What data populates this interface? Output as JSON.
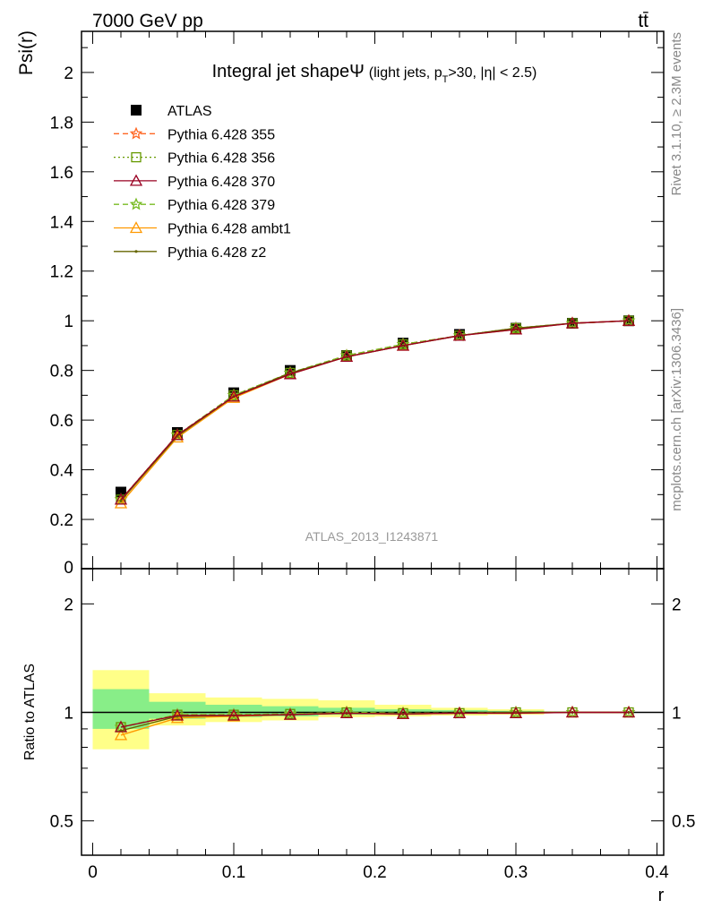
{
  "header": {
    "energy_label": "7000 GeV pp",
    "process_label": "tt̄"
  },
  "side_labels": {
    "rivet": "Rivet 3.1.10, ≥ 2.3M events",
    "mcplots": "mcplots.cern.ch [arXiv:1306.3436]"
  },
  "watermark": "ATLAS_2013_I1243871",
  "colors": {
    "atlas": "#000000",
    "p355": "#ff6622",
    "p356": "#669900",
    "p370": "#990022",
    "p379": "#77bb22",
    "pambt1": "#ff9900",
    "pz2": "#666600",
    "band_outer": "#ffff88",
    "band_inner": "#88ee88"
  },
  "chart_data": [
    {
      "type": "line",
      "title": "Integral jet shape",
      "title_symbol": "Ψ",
      "title_extra": "(light jets, p",
      "title_sub": "T",
      "title_extra2": ">30, |η| < 2.5)",
      "ylabel": "Psi(r)",
      "xlabel": "",
      "xlim": [
        0,
        0.4
      ],
      "ylim": [
        0,
        2.2
      ],
      "yticks": [
        "0.2",
        "0.4",
        "0.6",
        "0.8",
        "1",
        "1.2",
        "1.4",
        "1.6",
        "1.8",
        "2"
      ],
      "y_bottom_tick": "0",
      "grid": false,
      "legend_position": "top-left",
      "x": [
        0.02,
        0.06,
        0.1,
        0.14,
        0.18,
        0.22,
        0.26,
        0.3,
        0.34,
        0.38
      ],
      "series": [
        {
          "name": "ATLAS",
          "key": "atlas",
          "marker": "square",
          "values": [
            0.31,
            0.55,
            0.71,
            0.8,
            0.86,
            0.91,
            0.945,
            0.97,
            0.99,
            1.0
          ]
        },
        {
          "name": "Pythia 6.428 355",
          "key": "p355",
          "marker": "star",
          "dash": "6,4",
          "values": [
            0.28,
            0.54,
            0.7,
            0.79,
            0.86,
            0.905,
            0.94,
            0.97,
            0.99,
            1.0
          ]
        },
        {
          "name": "Pythia 6.428 356",
          "key": "p356",
          "marker": "open-square",
          "dash": "2,3",
          "values": [
            0.28,
            0.54,
            0.7,
            0.79,
            0.86,
            0.905,
            0.94,
            0.97,
            0.99,
            1.0
          ]
        },
        {
          "name": "Pythia 6.428 370",
          "key": "p370",
          "marker": "open-triangle",
          "values": [
            0.28,
            0.54,
            0.695,
            0.785,
            0.855,
            0.9,
            0.94,
            0.965,
            0.99,
            1.0
          ]
        },
        {
          "name": "Pythia 6.428 379",
          "key": "p379",
          "marker": "star",
          "dash": "6,4",
          "values": [
            0.28,
            0.54,
            0.7,
            0.79,
            0.86,
            0.905,
            0.94,
            0.97,
            0.99,
            1.0
          ]
        },
        {
          "name": "Pythia 6.428 ambt1",
          "key": "pambt1",
          "marker": "open-triangle",
          "values": [
            0.265,
            0.53,
            0.69,
            0.785,
            0.855,
            0.9,
            0.94,
            0.965,
            0.99,
            1.0
          ]
        },
        {
          "name": "Pythia 6.428 z2",
          "key": "pz2",
          "marker": "dot",
          "values": [
            0.275,
            0.535,
            0.695,
            0.79,
            0.855,
            0.9,
            0.94,
            0.97,
            0.99,
            1.0
          ]
        }
      ]
    },
    {
      "type": "line",
      "title": "",
      "ylabel": "Ratio to ATLAS",
      "xlabel": "r",
      "xlim": [
        0,
        0.4
      ],
      "ylim": [
        0.4,
        2.3
      ],
      "log_y": true,
      "yticks": [
        "0.5",
        "1",
        "2"
      ],
      "xticks": [
        "0",
        "0.1",
        "0.2",
        "0.3",
        "0.4"
      ],
      "grid": false,
      "bands": {
        "edges": [
          0.0,
          0.04,
          0.08,
          0.12,
          0.16,
          0.2,
          0.24,
          0.28,
          0.32
        ],
        "outer": [
          [
            0.79,
            1.31
          ],
          [
            0.92,
            1.13
          ],
          [
            0.94,
            1.1
          ],
          [
            0.95,
            1.09
          ],
          [
            0.97,
            1.08
          ],
          [
            0.975,
            1.05
          ],
          [
            0.98,
            1.03
          ],
          [
            0.985,
            1.02
          ]
        ],
        "inner": [
          [
            0.9,
            1.16
          ],
          [
            0.96,
            1.07
          ],
          [
            0.97,
            1.05
          ],
          [
            0.975,
            1.04
          ],
          [
            0.985,
            1.03
          ],
          [
            0.99,
            1.02
          ],
          [
            0.99,
            1.015
          ],
          [
            0.995,
            1.01
          ]
        ]
      },
      "x": [
        0.02,
        0.06,
        0.1,
        0.14,
        0.18,
        0.22,
        0.26,
        0.3,
        0.34,
        0.38
      ],
      "series": [
        {
          "name": "Pythia 6.428 355",
          "key": "p355",
          "marker": "star",
          "dash": "6,4",
          "values": [
            0.91,
            0.985,
            0.985,
            0.99,
            1.0,
            0.995,
            0.995,
            1.0,
            1.0,
            1.0
          ]
        },
        {
          "name": "Pythia 6.428 356",
          "key": "p356",
          "marker": "open-square",
          "dash": "2,3",
          "values": [
            0.91,
            0.985,
            0.985,
            0.99,
            1.0,
            0.995,
            0.995,
            1.0,
            1.0,
            1.0
          ]
        },
        {
          "name": "Pythia 6.428 370",
          "key": "p370",
          "marker": "open-triangle",
          "values": [
            0.91,
            0.98,
            0.98,
            0.985,
            0.995,
            0.99,
            0.995,
            0.995,
            1.0,
            1.0
          ]
        },
        {
          "name": "Pythia 6.428 379",
          "key": "p379",
          "marker": "star",
          "dash": "6,4",
          "values": [
            0.91,
            0.985,
            0.985,
            0.99,
            1.0,
            0.995,
            0.995,
            1.0,
            1.0,
            1.0
          ]
        },
        {
          "name": "Pythia 6.428 ambt1",
          "key": "pambt1",
          "marker": "open-triangle",
          "values": [
            0.865,
            0.965,
            0.975,
            0.985,
            0.995,
            0.99,
            0.995,
            0.995,
            1.0,
            1.0
          ]
        },
        {
          "name": "Pythia 6.428 z2",
          "key": "pz2",
          "marker": "dot",
          "values": [
            0.89,
            0.975,
            0.98,
            0.985,
            0.995,
            0.99,
            0.995,
            1.0,
            1.0,
            1.0
          ]
        }
      ]
    }
  ]
}
